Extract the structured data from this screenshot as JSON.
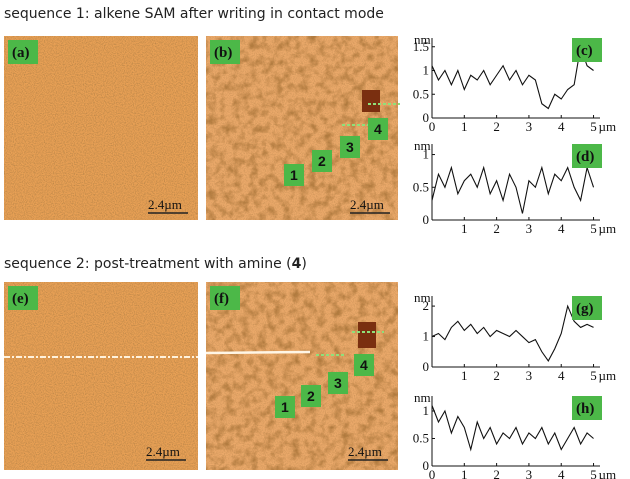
{
  "sequences": [
    {
      "title": "sequence 1: alkene SAM after writing in contact mode"
    },
    {
      "title_start": "sequence 2: post-treatment with amine (",
      "title_bold": "4",
      "title_end": ")"
    }
  ],
  "images": [
    {
      "label": "(a)",
      "scale_bar": "2.4µm"
    },
    {
      "label": "(b)",
      "scale_bar": "2.4µm",
      "markers": [
        "1",
        "2",
        "3",
        "4"
      ]
    },
    {
      "label": "(e)",
      "scale_bar": "2.4µm"
    },
    {
      "label": "(f)",
      "scale_bar": "2.4µm",
      "markers": [
        "1",
        "2",
        "3",
        "4"
      ]
    }
  ],
  "chart_data": [
    {
      "type": "line",
      "label": "(c)",
      "ylabel": "nm",
      "xlabel": "µm",
      "color": "#111111",
      "x": [
        0,
        0.2,
        0.4,
        0.6,
        0.8,
        1,
        1.2,
        1.4,
        1.6,
        1.8,
        2,
        2.2,
        2.4,
        2.6,
        2.8,
        3,
        3.2,
        3.4,
        3.6,
        3.8,
        4,
        4.2,
        4.4,
        4.6,
        4.8,
        5
      ],
      "values": [
        1.1,
        0.8,
        1.0,
        0.7,
        1.0,
        0.6,
        0.9,
        0.8,
        1.0,
        0.7,
        0.9,
        1.1,
        0.8,
        1.0,
        0.7,
        0.9,
        0.8,
        0.3,
        0.2,
        0.5,
        0.4,
        0.6,
        0.7,
        1.5,
        1.1,
        1.0
      ],
      "xlim": [
        0,
        5.2
      ],
      "ylim": [
        0,
        1.6
      ],
      "xticks": [
        0,
        1,
        2,
        3,
        4,
        5
      ],
      "yticks": [
        0,
        0.5,
        1,
        1.5
      ]
    },
    {
      "type": "line",
      "label": "(d)",
      "ylabel": "nm",
      "xlabel": "µm",
      "color": "#111111",
      "x": [
        0,
        0.2,
        0.4,
        0.6,
        0.8,
        1,
        1.2,
        1.4,
        1.6,
        1.8,
        2,
        2.2,
        2.4,
        2.6,
        2.8,
        3,
        3.2,
        3.4,
        3.6,
        3.8,
        4,
        4.2,
        4.4,
        4.6,
        4.8,
        5
      ],
      "values": [
        0.3,
        0.7,
        0.5,
        0.8,
        0.4,
        0.6,
        0.7,
        0.5,
        0.8,
        0.4,
        0.6,
        0.3,
        0.7,
        0.5,
        0.1,
        0.6,
        0.5,
        0.8,
        0.4,
        0.7,
        0.6,
        0.8,
        0.5,
        0.3,
        0.8,
        0.5
      ],
      "xlim": [
        0,
        5.2
      ],
      "ylim": [
        0,
        1.1
      ],
      "xticks": [
        1,
        2,
        3,
        4,
        5
      ],
      "yticks": [
        0,
        0.5,
        1
      ]
    },
    {
      "type": "line",
      "label": "(g)",
      "ylabel": "nm",
      "xlabel": "µm",
      "color": "#111111",
      "x": [
        0,
        0.2,
        0.4,
        0.6,
        0.8,
        1,
        1.2,
        1.4,
        1.6,
        1.8,
        2,
        2.2,
        2.4,
        2.6,
        2.8,
        3,
        3.2,
        3.4,
        3.6,
        3.8,
        4,
        4.2,
        4.4,
        4.6,
        4.8,
        5
      ],
      "values": [
        1.0,
        1.1,
        0.9,
        1.3,
        1.5,
        1.2,
        1.4,
        1.1,
        1.3,
        1.0,
        1.2,
        1.1,
        1.0,
        1.2,
        1.0,
        0.8,
        0.9,
        0.5,
        0.2,
        0.6,
        1.1,
        2.0,
        1.5,
        1.3,
        1.4,
        1.3
      ],
      "xlim": [
        0,
        5.2
      ],
      "ylim": [
        0,
        2.2
      ],
      "xticks": [
        1,
        2,
        3,
        4,
        5
      ],
      "yticks": [
        0,
        1,
        2
      ]
    },
    {
      "type": "line",
      "label": "(h)",
      "ylabel": "nm",
      "xlabel": "µm",
      "color": "#111111",
      "x": [
        0,
        0.2,
        0.4,
        0.6,
        0.8,
        1,
        1.2,
        1.4,
        1.6,
        1.8,
        2,
        2.2,
        2.4,
        2.6,
        2.8,
        3,
        3.2,
        3.4,
        3.6,
        3.8,
        4,
        4.2,
        4.4,
        4.6,
        4.8,
        5
      ],
      "values": [
        1.1,
        0.8,
        1.0,
        0.6,
        0.9,
        0.7,
        0.3,
        0.8,
        0.5,
        0.7,
        0.4,
        0.6,
        0.5,
        0.7,
        0.4,
        0.6,
        0.5,
        0.7,
        0.4,
        0.6,
        0.3,
        0.5,
        0.7,
        0.4,
        0.6,
        0.5
      ],
      "xlim": [
        0,
        5.2
      ],
      "ylim": [
        0,
        1.2
      ],
      "xticks": [
        0,
        1,
        2,
        3,
        4,
        5
      ],
      "yticks": [
        0,
        0.5,
        1
      ]
    }
  ]
}
